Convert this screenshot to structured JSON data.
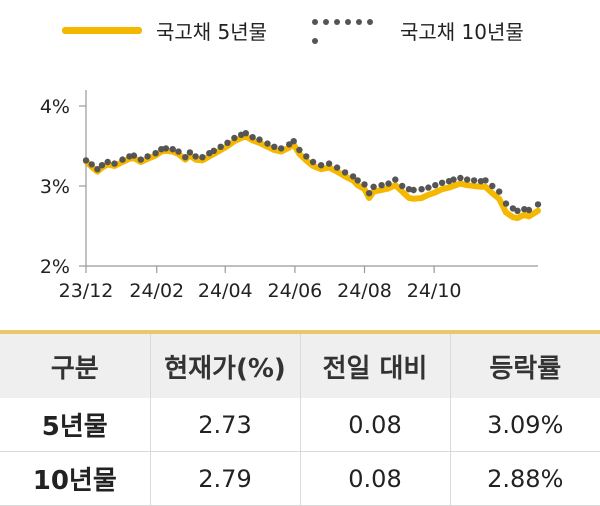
{
  "legend": {
    "series_5y": "국고채 5년물",
    "series_10y": "국고채 10년물"
  },
  "colors": {
    "series_5y": "#f5b800",
    "series_10y": "#555555",
    "axis": "#999999",
    "table_header_bg": "#efefef",
    "table_top_rule": "#e8c86a"
  },
  "chart_data": {
    "type": "line",
    "x_tick_labels": [
      "23/12",
      "24/02",
      "24/04",
      "24/06",
      "24/08",
      "24/10"
    ],
    "y_tick_labels": [
      "2%",
      "3%",
      "4%"
    ],
    "ylim": [
      2,
      4.2
    ],
    "grid": false,
    "legend_position": "top",
    "x_start": "2023-12-01",
    "x_end": "2024-12-31",
    "series": [
      {
        "name": "국고채 5년물",
        "style": "solid",
        "points": [
          [
            "2023-12-01",
            3.31
          ],
          [
            "2023-12-06",
            3.24
          ],
          [
            "2023-12-11",
            3.18
          ],
          [
            "2023-12-15",
            3.23
          ],
          [
            "2023-12-20",
            3.27
          ],
          [
            "2023-12-26",
            3.25
          ],
          [
            "2024-01-02",
            3.3
          ],
          [
            "2024-01-08",
            3.34
          ],
          [
            "2024-01-12",
            3.35
          ],
          [
            "2024-01-18",
            3.3
          ],
          [
            "2024-01-24",
            3.34
          ],
          [
            "2024-01-31",
            3.38
          ],
          [
            "2024-02-05",
            3.43
          ],
          [
            "2024-02-09",
            3.44
          ],
          [
            "2024-02-15",
            3.43
          ],
          [
            "2024-02-20",
            3.4
          ],
          [
            "2024-02-26",
            3.33
          ],
          [
            "2024-03-01",
            3.38
          ],
          [
            "2024-03-06",
            3.33
          ],
          [
            "2024-03-12",
            3.32
          ],
          [
            "2024-03-18",
            3.37
          ],
          [
            "2024-03-22",
            3.4
          ],
          [
            "2024-03-28",
            3.45
          ],
          [
            "2024-04-03",
            3.5
          ],
          [
            "2024-04-09",
            3.56
          ],
          [
            "2024-04-15",
            3.6
          ],
          [
            "2024-04-19",
            3.62
          ],
          [
            "2024-04-25",
            3.57
          ],
          [
            "2024-05-01",
            3.54
          ],
          [
            "2024-05-08",
            3.49
          ],
          [
            "2024-05-14",
            3.45
          ],
          [
            "2024-05-20",
            3.43
          ],
          [
            "2024-05-27",
            3.48
          ],
          [
            "2024-05-31",
            3.52
          ],
          [
            "2024-06-05",
            3.4
          ],
          [
            "2024-06-11",
            3.32
          ],
          [
            "2024-06-17",
            3.25
          ],
          [
            "2024-06-24",
            3.21
          ],
          [
            "2024-07-01",
            3.23
          ],
          [
            "2024-07-08",
            3.18
          ],
          [
            "2024-07-15",
            3.12
          ],
          [
            "2024-07-22",
            3.07
          ],
          [
            "2024-07-26",
            3.01
          ],
          [
            "2024-08-01",
            2.96
          ],
          [
            "2024-08-05",
            2.85
          ],
          [
            "2024-08-09",
            2.93
          ],
          [
            "2024-08-16",
            2.95
          ],
          [
            "2024-08-22",
            2.97
          ],
          [
            "2024-08-28",
            3.01
          ],
          [
            "2024-09-03",
            2.93
          ],
          [
            "2024-09-09",
            2.85
          ],
          [
            "2024-09-13",
            2.84
          ],
          [
            "2024-09-20",
            2.85
          ],
          [
            "2024-09-26",
            2.89
          ],
          [
            "2024-10-02",
            2.92
          ],
          [
            "2024-10-08",
            2.96
          ],
          [
            "2024-10-14",
            2.98
          ],
          [
            "2024-10-18",
            3.0
          ],
          [
            "2024-10-24",
            3.03
          ],
          [
            "2024-10-30",
            3.01
          ],
          [
            "2024-11-05",
            3.0
          ],
          [
            "2024-11-11",
            2.99
          ],
          [
            "2024-11-15",
            2.99
          ],
          [
            "2024-11-21",
            2.91
          ],
          [
            "2024-11-27",
            2.84
          ],
          [
            "2024-12-03",
            2.67
          ],
          [
            "2024-12-09",
            2.61
          ],
          [
            "2024-12-13",
            2.6
          ],
          [
            "2024-12-19",
            2.64
          ],
          [
            "2024-12-23",
            2.62
          ],
          [
            "2024-12-31",
            2.69
          ]
        ]
      },
      {
        "name": "국고채 10년물",
        "style": "dotted",
        "points": [
          [
            "2023-12-01",
            3.32
          ],
          [
            "2023-12-06",
            3.27
          ],
          [
            "2023-12-11",
            3.21
          ],
          [
            "2023-12-15",
            3.26
          ],
          [
            "2023-12-20",
            3.3
          ],
          [
            "2023-12-26",
            3.28
          ],
          [
            "2024-01-02",
            3.33
          ],
          [
            "2024-01-08",
            3.37
          ],
          [
            "2024-01-12",
            3.38
          ],
          [
            "2024-01-18",
            3.33
          ],
          [
            "2024-01-24",
            3.37
          ],
          [
            "2024-01-31",
            3.41
          ],
          [
            "2024-02-05",
            3.46
          ],
          [
            "2024-02-09",
            3.47
          ],
          [
            "2024-02-15",
            3.46
          ],
          [
            "2024-02-20",
            3.43
          ],
          [
            "2024-02-26",
            3.36
          ],
          [
            "2024-03-01",
            3.42
          ],
          [
            "2024-03-06",
            3.37
          ],
          [
            "2024-03-12",
            3.36
          ],
          [
            "2024-03-18",
            3.41
          ],
          [
            "2024-03-22",
            3.44
          ],
          [
            "2024-03-28",
            3.49
          ],
          [
            "2024-04-03",
            3.54
          ],
          [
            "2024-04-09",
            3.6
          ],
          [
            "2024-04-15",
            3.64
          ],
          [
            "2024-04-19",
            3.66
          ],
          [
            "2024-04-25",
            3.61
          ],
          [
            "2024-05-01",
            3.58
          ],
          [
            "2024-05-08",
            3.53
          ],
          [
            "2024-05-14",
            3.49
          ],
          [
            "2024-05-20",
            3.47
          ],
          [
            "2024-05-27",
            3.52
          ],
          [
            "2024-05-31",
            3.56
          ],
          [
            "2024-06-05",
            3.45
          ],
          [
            "2024-06-11",
            3.37
          ],
          [
            "2024-06-17",
            3.3
          ],
          [
            "2024-06-24",
            3.26
          ],
          [
            "2024-07-01",
            3.28
          ],
          [
            "2024-07-08",
            3.23
          ],
          [
            "2024-07-15",
            3.17
          ],
          [
            "2024-07-22",
            3.12
          ],
          [
            "2024-07-26",
            3.07
          ],
          [
            "2024-08-01",
            3.02
          ],
          [
            "2024-08-05",
            2.91
          ],
          [
            "2024-08-09",
            2.99
          ],
          [
            "2024-08-16",
            3.01
          ],
          [
            "2024-08-22",
            3.03
          ],
          [
            "2024-08-28",
            3.08
          ],
          [
            "2024-09-03",
            3.0
          ],
          [
            "2024-09-09",
            2.96
          ],
          [
            "2024-09-13",
            2.95
          ],
          [
            "2024-09-20",
            2.96
          ],
          [
            "2024-09-26",
            2.98
          ],
          [
            "2024-10-02",
            3.01
          ],
          [
            "2024-10-08",
            3.04
          ],
          [
            "2024-10-14",
            3.06
          ],
          [
            "2024-10-18",
            3.08
          ],
          [
            "2024-10-24",
            3.1
          ],
          [
            "2024-10-30",
            3.08
          ],
          [
            "2024-11-05",
            3.07
          ],
          [
            "2024-11-11",
            3.06
          ],
          [
            "2024-11-15",
            3.07
          ],
          [
            "2024-11-21",
            3.0
          ],
          [
            "2024-11-27",
            2.93
          ],
          [
            "2024-12-03",
            2.78
          ],
          [
            "2024-12-09",
            2.72
          ],
          [
            "2024-12-13",
            2.69
          ],
          [
            "2024-12-19",
            2.71
          ],
          [
            "2024-12-23",
            2.7
          ],
          [
            "2024-12-31",
            2.77
          ]
        ]
      }
    ]
  },
  "table": {
    "headers": [
      "구분",
      "현재가(%)",
      "전일 대비",
      "등락률"
    ],
    "rows": [
      {
        "label": "5년물",
        "price": "2.73",
        "change": "0.08",
        "rate": "3.09%"
      },
      {
        "label": "10년물",
        "price": "2.79",
        "change": "0.08",
        "rate": "2.88%"
      }
    ]
  }
}
